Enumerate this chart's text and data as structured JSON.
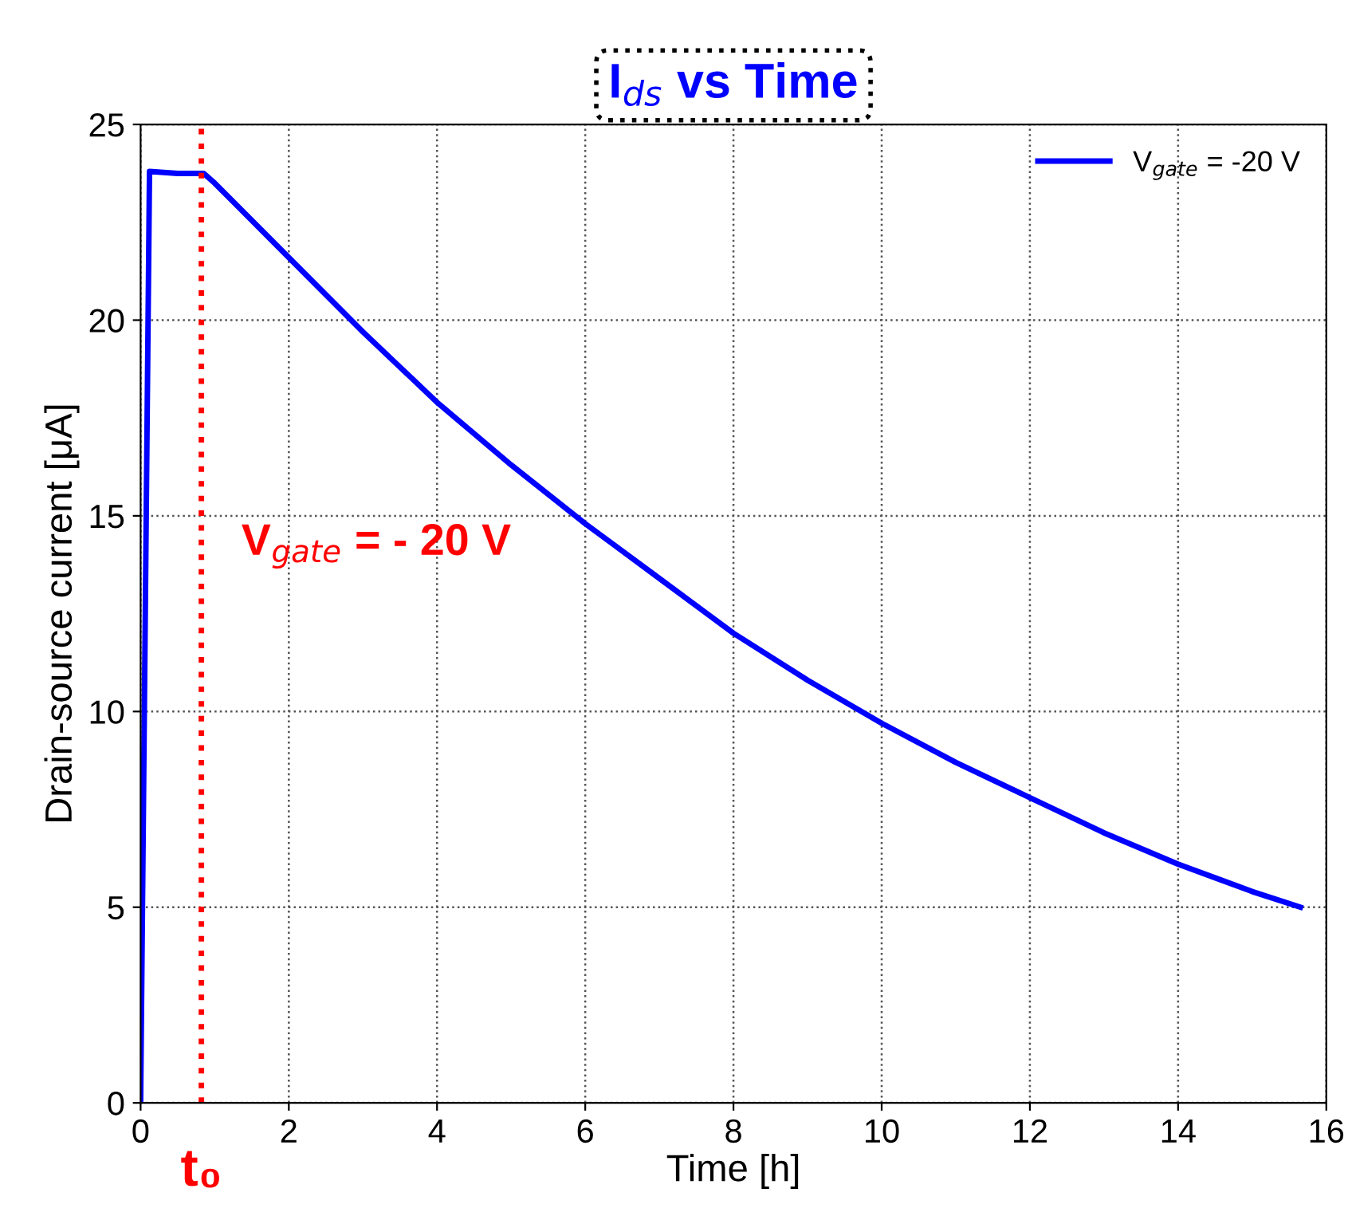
{
  "chart_data": {
    "type": "line",
    "title": "I$_{ds}$ vs Time",
    "xlabel": "Time [h]",
    "ylabel": "Drain-source current [μA]",
    "x": [
      0,
      0.12,
      0.5,
      0.85,
      1,
      2,
      3,
      4,
      5,
      6,
      7,
      8,
      9,
      10,
      11,
      12,
      13,
      14,
      15,
      15.65
    ],
    "series": [
      {
        "name": "V$_{gate}$ = -20 V",
        "color": "#0000ff",
        "values": [
          0,
          23.8,
          23.75,
          23.75,
          23.5,
          21.6,
          19.7,
          17.9,
          16.3,
          14.8,
          13.4,
          12.0,
          10.8,
          9.7,
          8.7,
          7.8,
          6.9,
          6.1,
          5.4,
          5.0
        ]
      }
    ],
    "xlim": [
      0,
      16
    ],
    "xticks": [
      0,
      2,
      4,
      6,
      8,
      10,
      12,
      14,
      16
    ],
    "ylim": [
      0,
      25
    ],
    "yticks": [
      0,
      5,
      10,
      15,
      20,
      25
    ],
    "ref_lines": [
      {
        "axis": "x",
        "value": 0.82,
        "label": "t₀",
        "color": "#ff0000",
        "line_style": "dotted"
      }
    ],
    "annotations": [
      "V$_{gate}$ = - 20 V"
    ],
    "grid": true,
    "legend": "top right",
    "marker": "none",
    "line_style": "solid"
  }
}
